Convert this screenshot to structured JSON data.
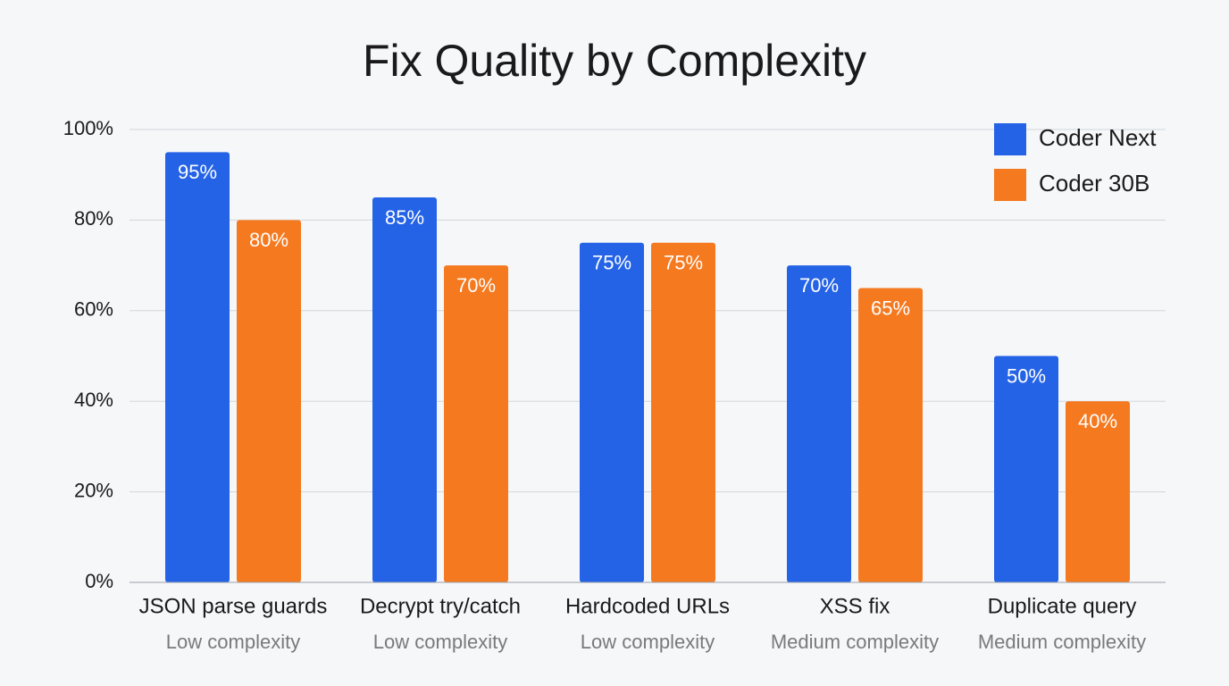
{
  "chart_data": {
    "type": "bar",
    "title": "Fix Quality by Complexity",
    "categories": [
      "JSON parse guards",
      "Decrypt try/catch",
      "Hardcoded URLs",
      "XSS fix",
      "Duplicate query"
    ],
    "category_sublabels": [
      "Low complexity",
      "Low complexity",
      "Low complexity",
      "Medium complexity",
      "Medium complexity"
    ],
    "series": [
      {
        "name": "Coder Next",
        "color": "#2563e6",
        "values": [
          95,
          85,
          75,
          70,
          50
        ],
        "value_labels": [
          "95%",
          "85%",
          "75%",
          "70%",
          "50%"
        ]
      },
      {
        "name": "Coder 30B",
        "color": "#f5791f",
        "values": [
          80,
          70,
          75,
          65,
          40
        ],
        "value_labels": [
          "80%",
          "70%",
          "75%",
          "65%",
          "40%"
        ]
      }
    ],
    "ylim": [
      0,
      100
    ],
    "yticks": [
      {
        "value": 0,
        "label": "0%"
      },
      {
        "value": 20,
        "label": "20%"
      },
      {
        "value": 40,
        "label": "40%"
      },
      {
        "value": 60,
        "label": "60%"
      },
      {
        "value": 80,
        "label": "80%"
      },
      {
        "value": 100,
        "label": "100%"
      }
    ],
    "grid": true,
    "legend": "top-right"
  }
}
